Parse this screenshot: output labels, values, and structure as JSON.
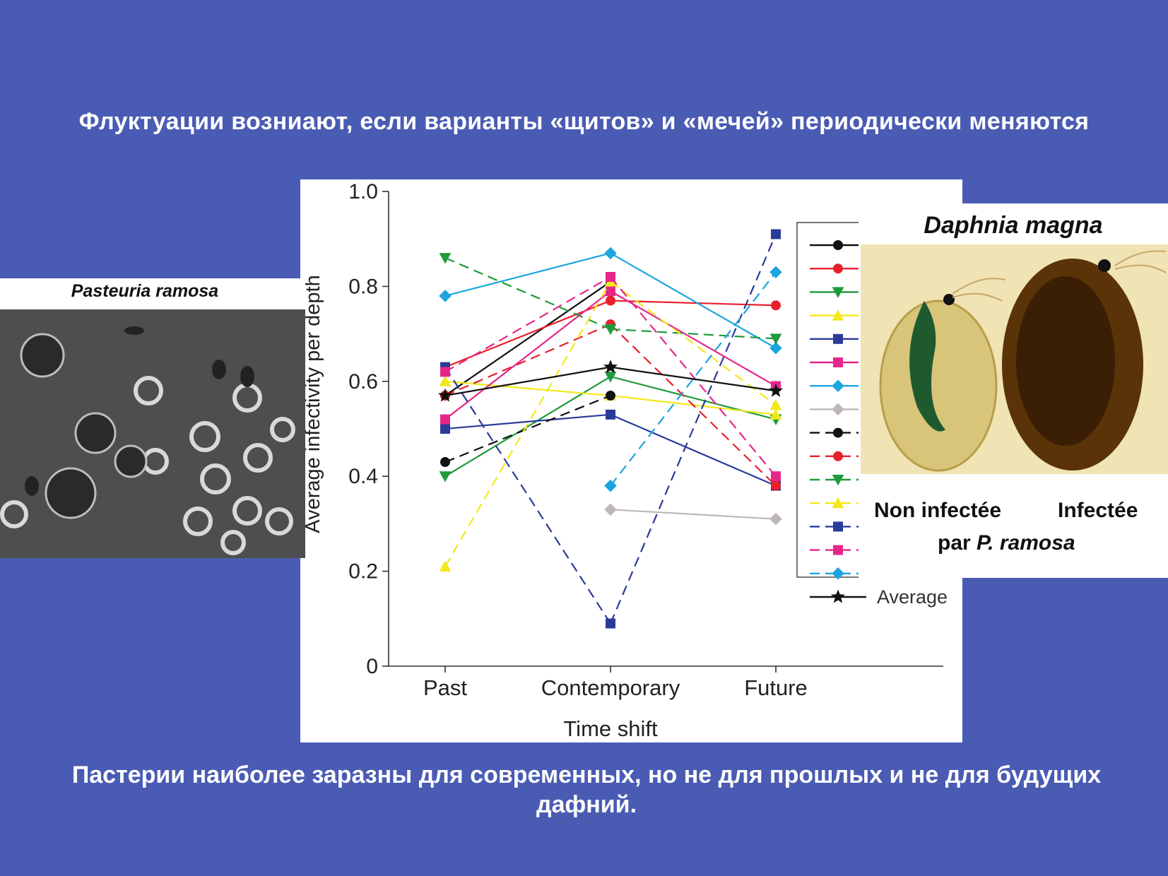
{
  "slide": {
    "title": "Флуктуации возниают, если варианты «щитов» и «мечей» периодически меняются",
    "caption": "Пастерии наиболее заразны для современных, но не для прошлых и не для будущих дафний."
  },
  "left_photo": {
    "title": "Pasteuria ramosa",
    "background": "#4c4c4c"
  },
  "right_photo": {
    "title": "Daphnia magna",
    "label_left": "Non infectée",
    "label_right": "Infectée",
    "label_bottom_prefix": "par ",
    "label_bottom_species": "P. ramosa"
  },
  "chart_data": {
    "type": "line",
    "x": [
      "Past",
      "Contemporary",
      "Future"
    ],
    "xlabel": "Time shift",
    "ylabel": "Average infectivity per depth",
    "ylim": [
      0,
      1.0
    ],
    "yticks": [
      "0",
      "0.2",
      "0.4",
      "0.6",
      "0.8",
      "1.0"
    ],
    "legend_position": "right",
    "series": [
      {
        "color": "#111111",
        "marker": "circle",
        "dash": false,
        "values": [
          0.57,
          0.81,
          null
        ]
      },
      {
        "color": "#e8202a",
        "marker": "circle",
        "dash": false,
        "values": [
          0.63,
          0.77,
          0.76
        ]
      },
      {
        "color": "#1f9a3a",
        "marker": "triangle-down",
        "dash": false,
        "values": [
          0.4,
          0.61,
          0.52
        ]
      },
      {
        "color": "#f2e81a",
        "marker": "triangle-up",
        "dash": false,
        "values": [
          0.6,
          0.57,
          0.53
        ]
      },
      {
        "color": "#2a3b9a",
        "marker": "square",
        "dash": false,
        "values": [
          0.5,
          0.53,
          0.38
        ]
      },
      {
        "color": "#e6268a",
        "marker": "square",
        "dash": false,
        "values": [
          0.52,
          0.79,
          0.59
        ]
      },
      {
        "color": "#1aa5e0",
        "marker": "diamond",
        "dash": false,
        "values": [
          0.78,
          0.87,
          0.67
        ]
      },
      {
        "color": "#bdb8b5",
        "marker": "diamond",
        "dash": false,
        "values": [
          null,
          0.33,
          0.31
        ]
      },
      {
        "color": "#111111",
        "marker": "circle",
        "dash": true,
        "values": [
          0.43,
          0.57,
          null
        ]
      },
      {
        "color": "#e8202a",
        "marker": "circle",
        "dash": true,
        "values": [
          0.57,
          0.72,
          0.38
        ]
      },
      {
        "color": "#1f9a3a",
        "marker": "triangle-down",
        "dash": true,
        "values": [
          0.86,
          0.71,
          0.69
        ]
      },
      {
        "color": "#f2e81a",
        "marker": "triangle-up",
        "dash": true,
        "values": [
          0.21,
          0.81,
          0.55
        ]
      },
      {
        "color": "#2a3b9a",
        "marker": "square",
        "dash": true,
        "values": [
          0.63,
          0.09,
          0.91
        ]
      },
      {
        "color": "#e6268a",
        "marker": "square",
        "dash": true,
        "values": [
          0.62,
          0.82,
          0.4
        ]
      },
      {
        "color": "#1aa5e0",
        "marker": "diamond",
        "dash": true,
        "values": [
          null,
          0.38,
          0.83
        ]
      },
      {
        "name": "Average",
        "color": "#111111",
        "marker": "star",
        "dash": false,
        "values": [
          0.57,
          0.63,
          0.58
        ]
      }
    ]
  }
}
